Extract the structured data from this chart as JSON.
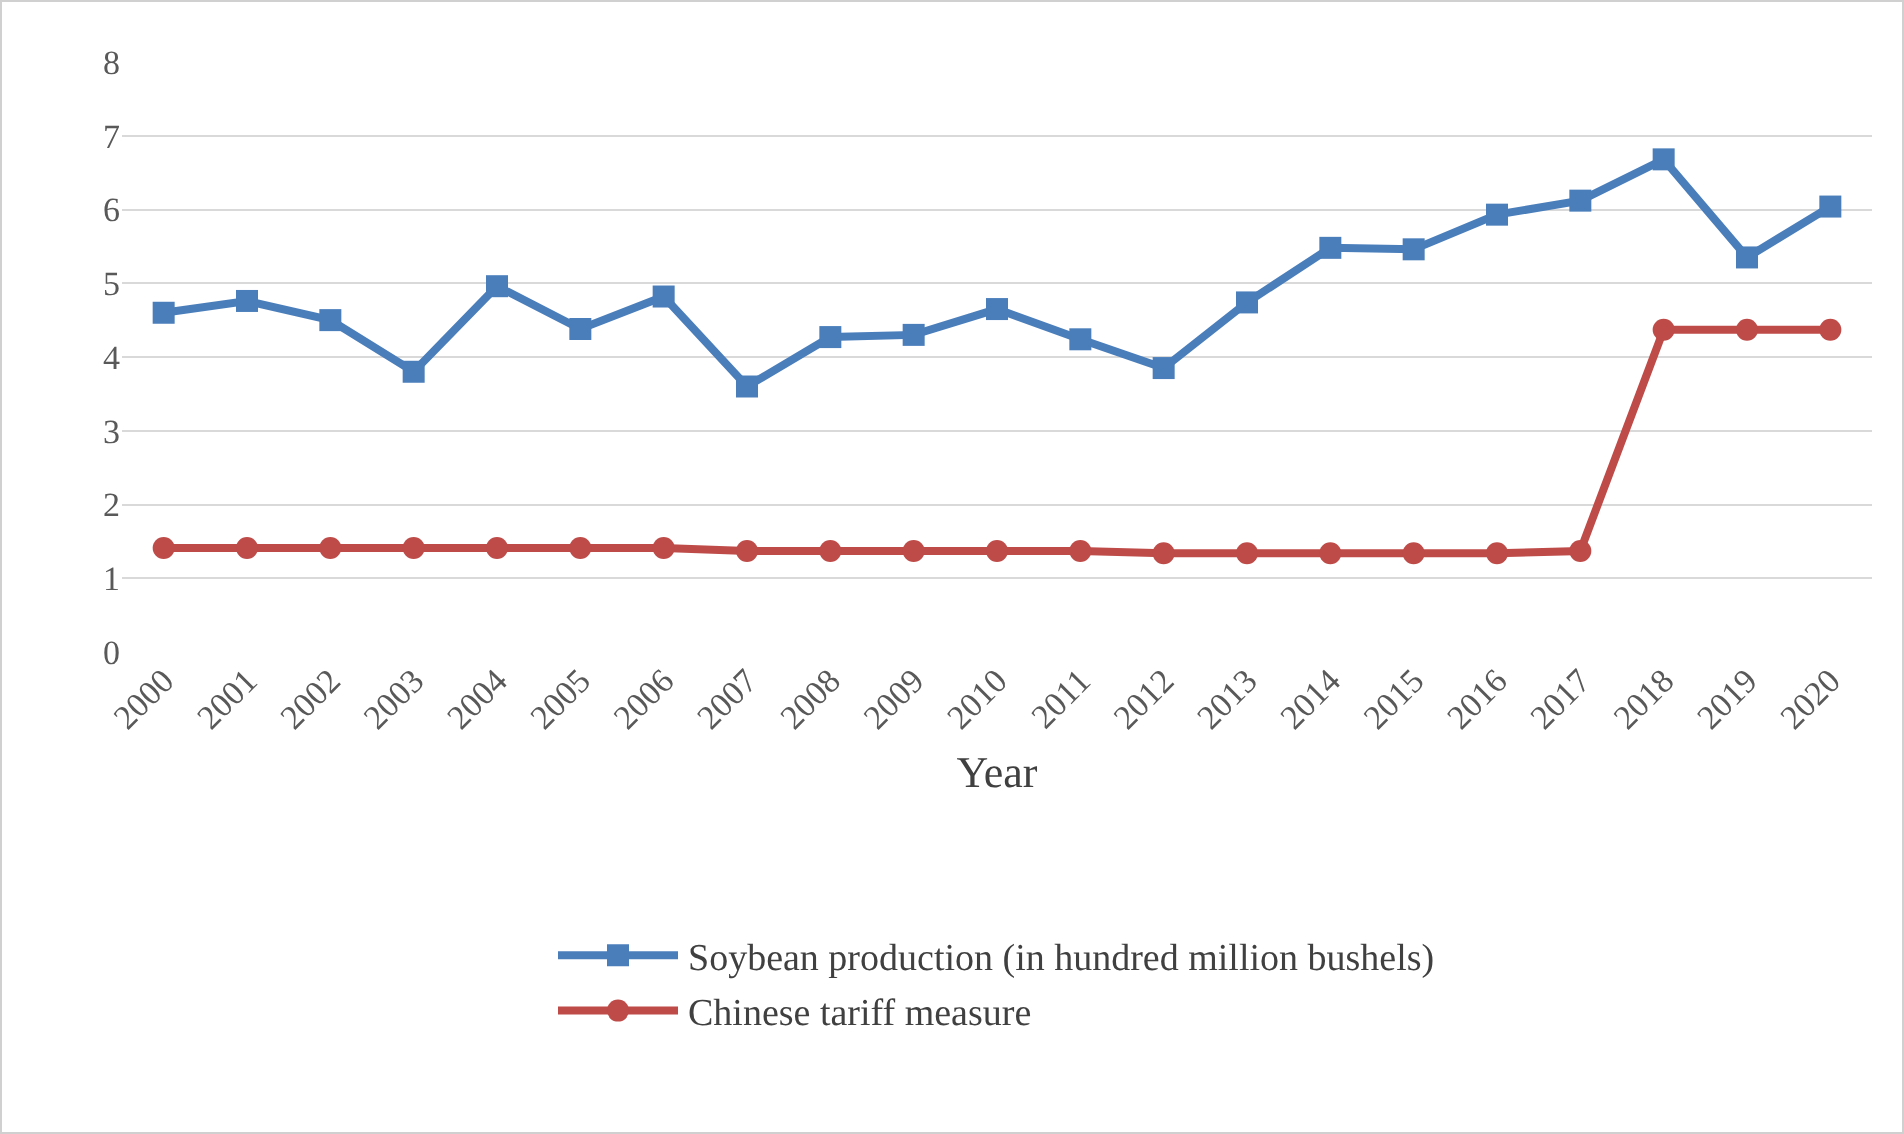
{
  "chart_data": {
    "type": "line",
    "xlabel": "Year",
    "categories": [
      "2000",
      "2001",
      "2002",
      "2003",
      "2004",
      "2005",
      "2006",
      "2007",
      "2008",
      "2009",
      "2010",
      "2011",
      "2012",
      "2013",
      "2014",
      "2015",
      "2016",
      "2017",
      "2018",
      "2019",
      "2020"
    ],
    "series": [
      {
        "name": "Soybean production (in hundred million bushels)",
        "color": "#4a7ebb",
        "marker": "square",
        "values": [
          4.6,
          4.76,
          4.5,
          3.8,
          4.96,
          4.38,
          4.82,
          3.6,
          4.27,
          4.3,
          4.65,
          4.24,
          3.85,
          4.74,
          5.48,
          5.46,
          5.93,
          6.12,
          6.68,
          5.35,
          6.04
        ]
      },
      {
        "name": "Chinese tariff measure",
        "color": "#be4b48",
        "marker": "circle",
        "values": [
          1.41,
          1.41,
          1.41,
          1.41,
          1.41,
          1.41,
          1.41,
          1.37,
          1.37,
          1.37,
          1.37,
          1.37,
          1.34,
          1.34,
          1.34,
          1.34,
          1.34,
          1.37,
          4.37,
          4.37,
          4.37
        ]
      }
    ],
    "ylim": [
      0,
      8
    ],
    "yticks": [
      0,
      1,
      2,
      3,
      4,
      5,
      6,
      7,
      8
    ],
    "grid": "y",
    "legend": "bottom",
    "line_style": "solid"
  }
}
